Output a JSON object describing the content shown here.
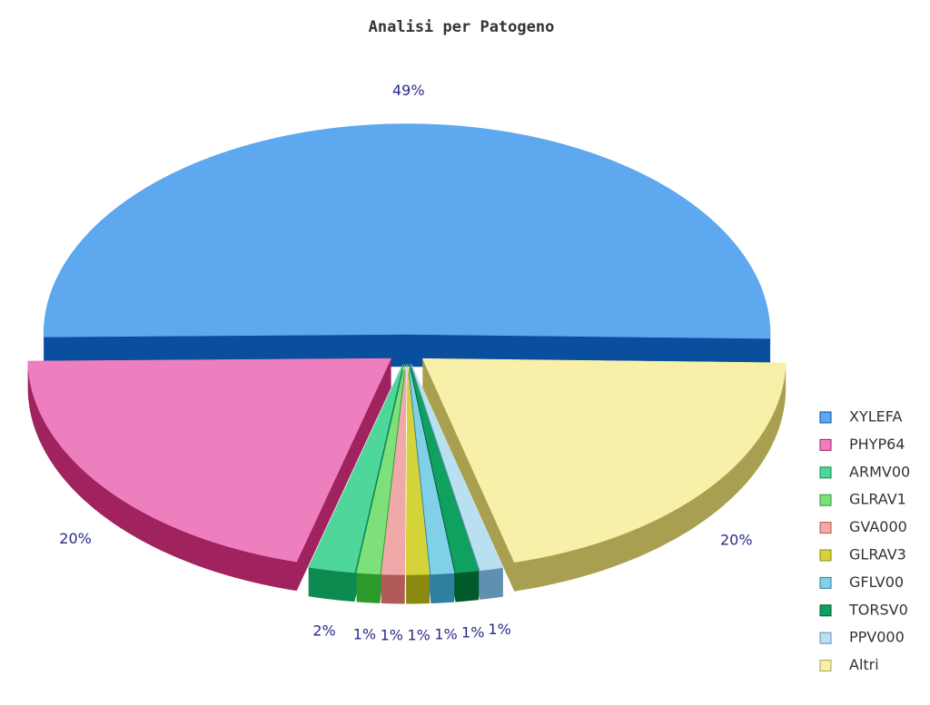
{
  "chart_data": {
    "type": "pie",
    "title": "Analisi per Patogeno",
    "categories": [
      "XYLEFA",
      "PHYP64",
      "ARMV00",
      "GLRAV1",
      "GVA000",
      "GLRAV3",
      "GFLV00",
      "TORSV0",
      "PPV000",
      "Altri"
    ],
    "values": [
      49,
      20,
      2,
      1,
      1,
      1,
      1,
      1,
      1,
      20
    ],
    "value_labels": [
      "49%",
      "20%",
      "2%",
      "1%",
      "1%",
      "1%",
      "1%",
      "1%",
      "1%",
      "20%"
    ],
    "colors": [
      "#5ea8f0",
      "#ee7fbf",
      "#4fd69a",
      "#7ee07a",
      "#f0a8a8",
      "#d4d43a",
      "#80d0e8",
      "#10a060",
      "#b8e0f0",
      "#f8f0a8"
    ],
    "side_colors": [
      "#0a4f9e",
      "#a0225f",
      "#0d8a50",
      "#2a9a2a",
      "#b05a5a",
      "#8a8a10",
      "#2e7fa0",
      "#005a2a",
      "#6090b0",
      "#a8a050"
    ],
    "legend": "right"
  }
}
